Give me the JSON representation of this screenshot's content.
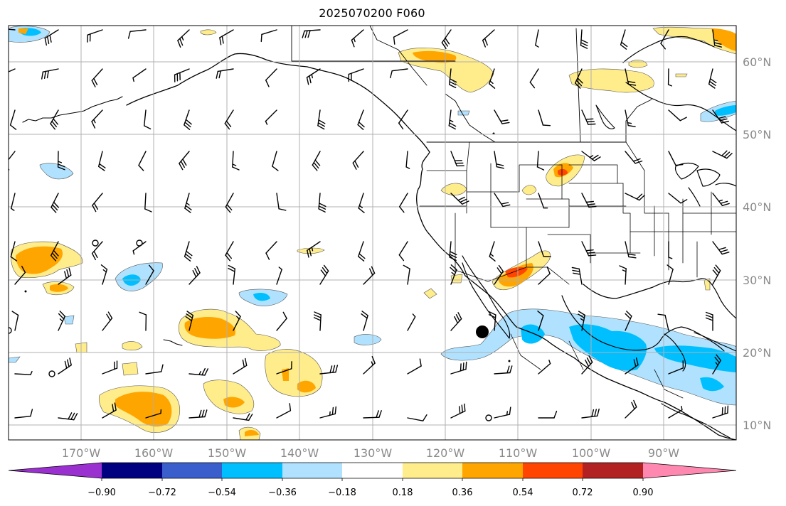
{
  "title": "2025070200 F060",
  "map": {
    "lat_labels": [
      "60°N",
      "50°N",
      "40°N",
      "30°N",
      "20°N",
      "10°N"
    ],
    "lon_labels": [
      "170°W",
      "160°W",
      "150°W",
      "140°W",
      "130°W",
      "120°W",
      "110°W",
      "100°W",
      "90°W"
    ]
  },
  "colorbar": {
    "colors": [
      "#9b30d0",
      "#000080",
      "#3a5fcd",
      "#00bfff",
      "#b0e2ff",
      "#ffffff",
      "#ffec8b",
      "#ffa500",
      "#ff4500",
      "#b22222",
      "#ff88b0"
    ],
    "ticks": [
      "−0.90",
      "−0.72",
      "−0.54",
      "−0.36",
      "−0.18",
      "0.18",
      "0.36",
      "0.54",
      "0.72",
      "0.90"
    ]
  }
}
